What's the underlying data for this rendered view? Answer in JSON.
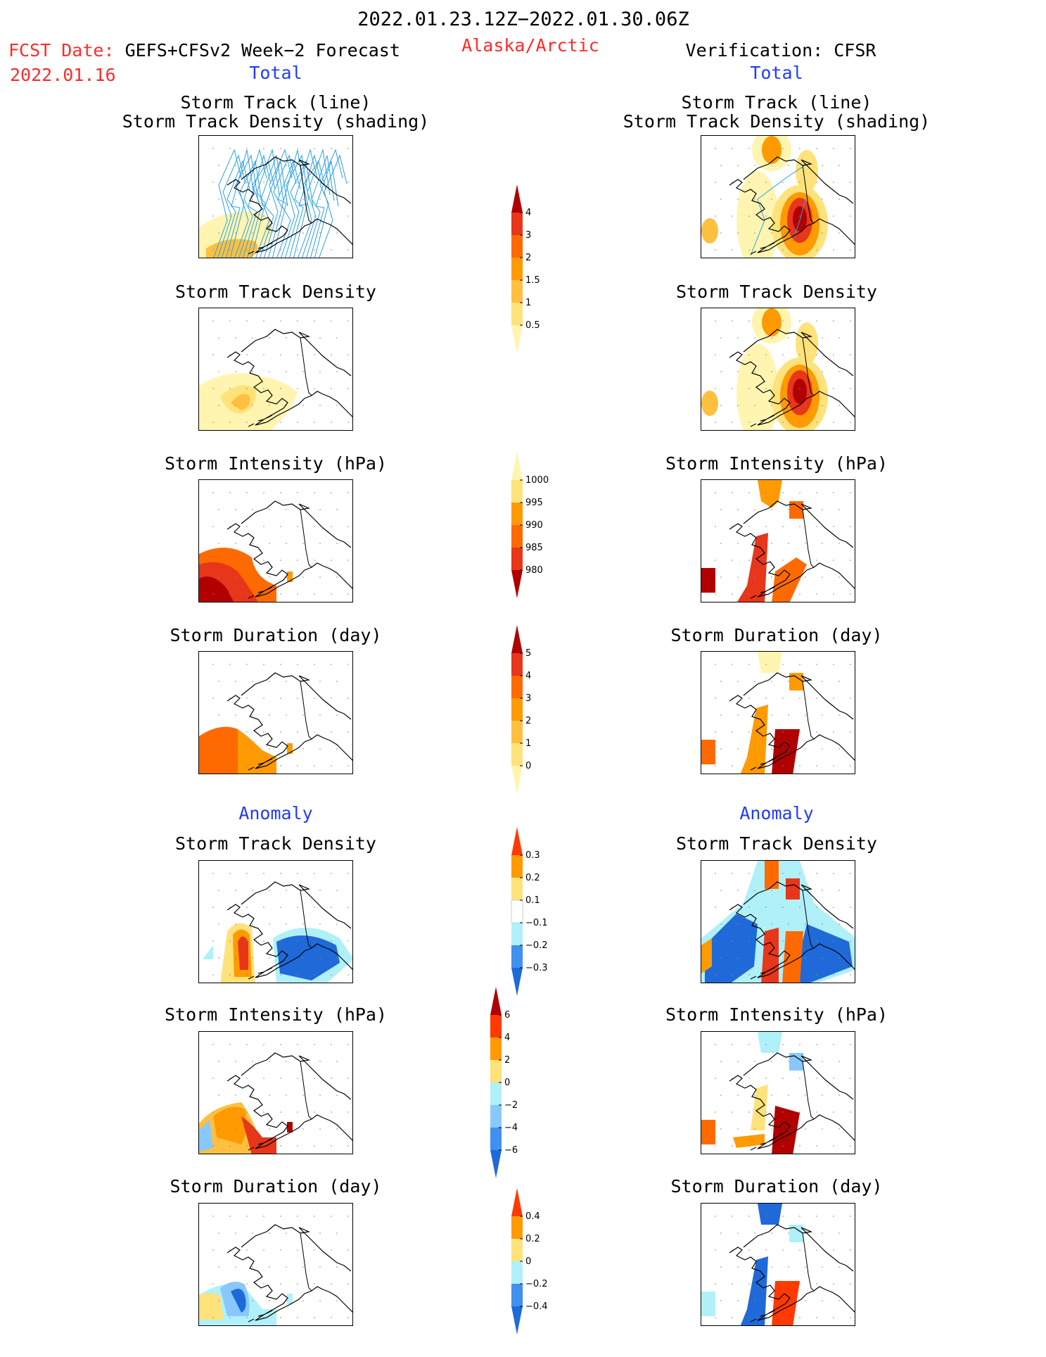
{
  "header": {
    "date_range": "2022.01.23.12Z−2022.01.30.06Z",
    "fcst_prefix": "FCST Date:",
    "fcst_model": "GEFS+CFSv2 Week−2 Forecast",
    "fcst_date": "2022.01.16",
    "region": "Alaska/Arctic",
    "verification": "Verification: CFSR"
  },
  "sections": {
    "total": "Total",
    "anomaly": "Anomaly"
  },
  "panel_titles": {
    "track_line": "Storm Track (line)",
    "track_shading": "Storm Track Density (shading)",
    "density": "Storm Track Density",
    "intensity": "Storm Intensity (hPa)",
    "duration": "Storm Duration (day)"
  },
  "colors": {
    "pale_yellow": "#fff5b0",
    "light_yellow": "#ffe27a",
    "light_orange": "#ffc040",
    "orange": "#ff9a00",
    "dark_orange": "#ff6a00",
    "red": "#e8361a",
    "dark_red": "#b00000",
    "light_cyan": "#b0f0f8",
    "light_blue": "#88c8ff",
    "mid_blue": "#4090f0",
    "blue": "#1f6ad8",
    "track_line": "#2aa0e8"
  },
  "chart_data": [
    {
      "type": "heatmap",
      "title": "Storm Track Density",
      "colorbar_levels": [
        "0.5",
        "1",
        "1.5",
        "2",
        "3",
        "4"
      ],
      "colorbar_colors": [
        "#fff5b0",
        "#ffe27a",
        "#ffc040",
        "#ff9a00",
        "#ff6a00",
        "#e8361a",
        "#b00000"
      ],
      "extend": "both"
    },
    {
      "type": "heatmap",
      "title": "Storm Intensity (hPa)",
      "colorbar_levels": [
        "980",
        "985",
        "990",
        "995",
        "1000"
      ],
      "colorbar_colors": [
        "#b00000",
        "#e8361a",
        "#ff6a00",
        "#ff9a00",
        "#ffe27a",
        "#fff5b0"
      ],
      "extend": "both"
    },
    {
      "type": "heatmap",
      "title": "Storm Duration (day)",
      "colorbar_levels": [
        "0",
        "1",
        "2",
        "3",
        "4",
        "5"
      ],
      "colorbar_colors": [
        "#fff5b0",
        "#ffe27a",
        "#ffc040",
        "#ff9a00",
        "#ff6a00",
        "#e8361a",
        "#b00000"
      ],
      "extend": "both"
    },
    {
      "type": "heatmap",
      "title": "Anomaly Storm Track Density",
      "colorbar_levels": [
        "−0.3",
        "−0.2",
        "−0.1",
        "0.1",
        "0.2",
        "0.3"
      ],
      "colorbar_colors": [
        "#1f6ad8",
        "#4090f0",
        "#b0f0f8",
        "#ffffff",
        "#ffe27a",
        "#ff9a00",
        "#ff3a00"
      ],
      "extend": "both"
    },
    {
      "type": "heatmap",
      "title": "Anomaly Storm Intensity (hPa)",
      "colorbar_levels": [
        "−6",
        "−4",
        "−2",
        "0",
        "2",
        "4",
        "6"
      ],
      "colorbar_colors": [
        "#1f6ad8",
        "#4090f0",
        "#88c8ff",
        "#b0f0f8",
        "#ffe27a",
        "#ff9a00",
        "#ff3a00",
        "#b00000"
      ],
      "extend": "both"
    },
    {
      "type": "heatmap",
      "title": "Anomaly Storm Duration (day)",
      "colorbar_levels": [
        "−0.4",
        "−0.2",
        "0",
        "0.2",
        "0.4"
      ],
      "colorbar_colors": [
        "#1f6ad8",
        "#4090f0",
        "#b0f0f8",
        "#ffe27a",
        "#ff9a00",
        "#ff3a00"
      ],
      "extend": "both"
    }
  ]
}
